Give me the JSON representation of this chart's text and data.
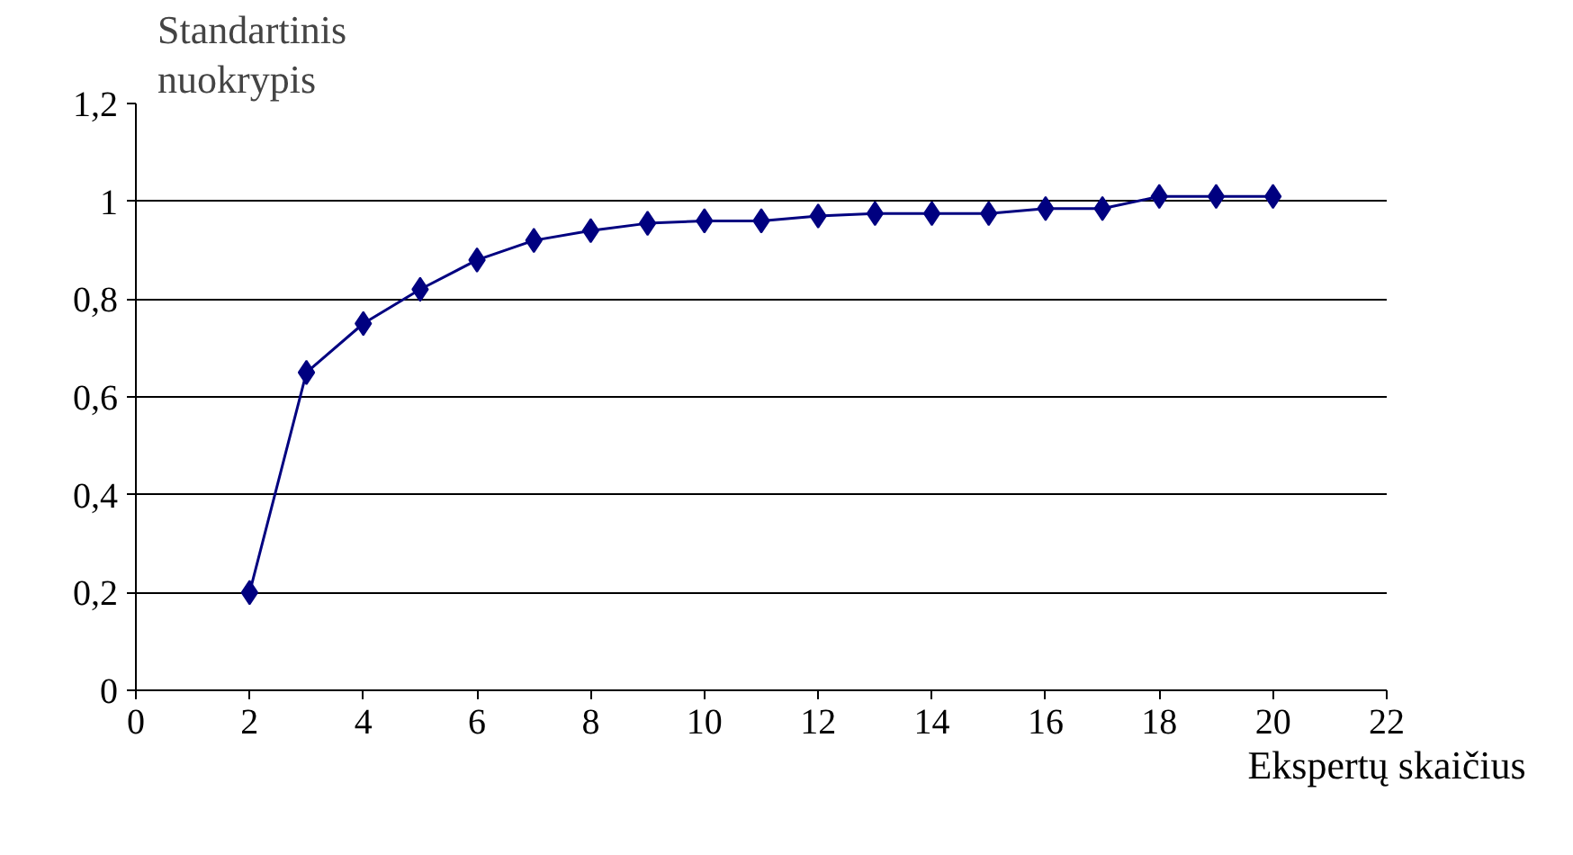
{
  "chart_data": {
    "type": "line",
    "ylabel": "Standartinis nuokrypis",
    "xlabel": "Ekspertų skaičius",
    "x": [
      2,
      3,
      4,
      5,
      6,
      7,
      8,
      9,
      10,
      11,
      12,
      13,
      14,
      15,
      16,
      17,
      18,
      19,
      20
    ],
    "series": [
      {
        "color": "#000080",
        "values": [
          0.2,
          0.65,
          0.75,
          0.82,
          0.88,
          0.92,
          0.94,
          0.955,
          0.96,
          0.96,
          0.97,
          0.975,
          0.975,
          0.975,
          0.985,
          0.985,
          1.01,
          1.01,
          1.01
        ]
      }
    ],
    "xlim": [
      0,
      22
    ],
    "xticks": [
      0,
      2,
      4,
      6,
      8,
      10,
      12,
      14,
      16,
      18,
      20,
      22
    ],
    "ylim": [
      0,
      1.2
    ],
    "yticks": [
      0,
      {
        "value": 0.2,
        "label": "0,2"
      },
      {
        "value": 0.4,
        "label": "0,4"
      },
      {
        "value": 0.6,
        "label": "0,6"
      },
      {
        "value": 0.8,
        "label": "0,8"
      },
      1,
      {
        "value": 1.2,
        "label": "1,2"
      }
    ],
    "grid": "y",
    "marker": "diamond",
    "line_style": "solid"
  }
}
